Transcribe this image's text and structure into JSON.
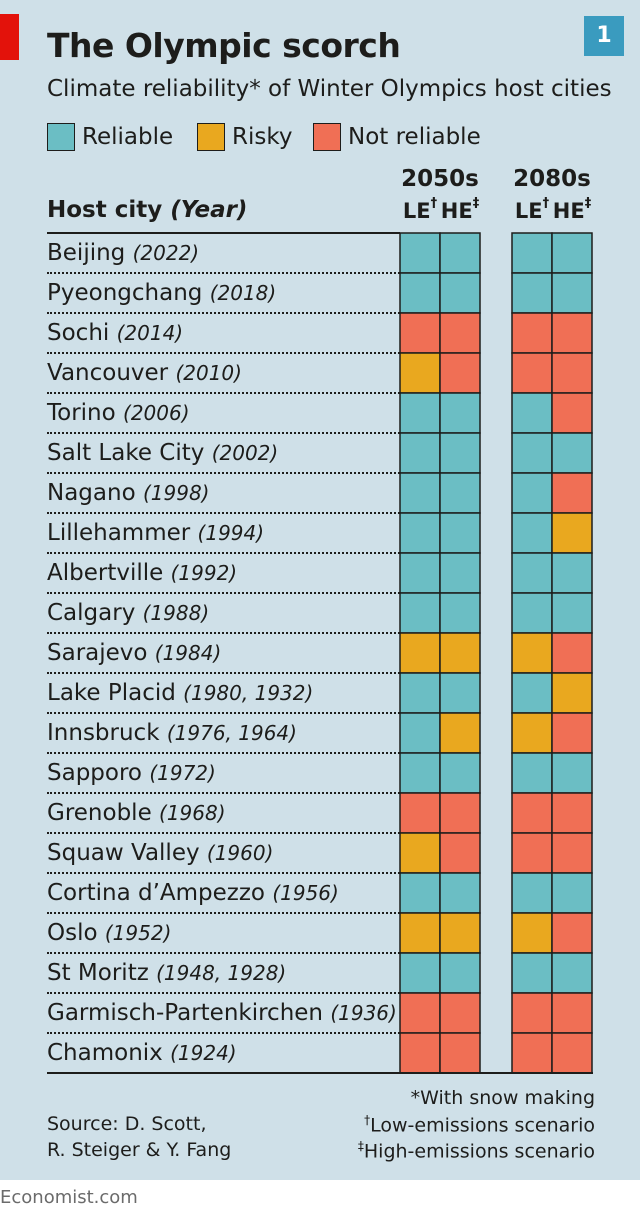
{
  "title": "The Olympic scorch",
  "chart_number": "1",
  "subtitle": "Climate reliability* of Winter Olympics host cities",
  "legend": [
    {
      "label": "Reliable",
      "color": "#6bbec4"
    },
    {
      "label": "Risky",
      "color": "#e9a81f"
    },
    {
      "label": "Not reliable",
      "color": "#f06f55"
    }
  ],
  "column_header": {
    "host": "Host city",
    "year": "(Year)"
  },
  "periods": [
    {
      "label": "2050s",
      "scenarios": [
        {
          "code": "LE",
          "mark": "†"
        },
        {
          "code": "HE",
          "mark": "‡"
        }
      ]
    },
    {
      "label": "2080s",
      "scenarios": [
        {
          "code": "LE",
          "mark": "†"
        },
        {
          "code": "HE",
          "mark": "‡"
        }
      ]
    }
  ],
  "chart_data": {
    "type": "table",
    "title": "The Olympic scorch",
    "columns": [
      "2050s LE",
      "2050s HE",
      "2080s LE",
      "2080s HE"
    ],
    "rows": [
      {
        "city": "Beijing",
        "years": "(2022)",
        "ratings": [
          "Reliable",
          "Reliable",
          "Reliable",
          "Reliable"
        ]
      },
      {
        "city": "Pyeongchang",
        "years": "(2018)",
        "ratings": [
          "Reliable",
          "Reliable",
          "Reliable",
          "Reliable"
        ]
      },
      {
        "city": "Sochi",
        "years": "(2014)",
        "ratings": [
          "Not reliable",
          "Not reliable",
          "Not reliable",
          "Not reliable"
        ]
      },
      {
        "city": "Vancouver",
        "years": "(2010)",
        "ratings": [
          "Risky",
          "Not reliable",
          "Not reliable",
          "Not reliable"
        ]
      },
      {
        "city": "Torino",
        "years": "(2006)",
        "ratings": [
          "Reliable",
          "Reliable",
          "Reliable",
          "Not reliable"
        ]
      },
      {
        "city": "Salt Lake City",
        "years": "(2002)",
        "ratings": [
          "Reliable",
          "Reliable",
          "Reliable",
          "Reliable"
        ]
      },
      {
        "city": "Nagano",
        "years": "(1998)",
        "ratings": [
          "Reliable",
          "Reliable",
          "Reliable",
          "Not reliable"
        ]
      },
      {
        "city": "Lillehammer",
        "years": "(1994)",
        "ratings": [
          "Reliable",
          "Reliable",
          "Reliable",
          "Risky"
        ]
      },
      {
        "city": "Albertville",
        "years": "(1992)",
        "ratings": [
          "Reliable",
          "Reliable",
          "Reliable",
          "Reliable"
        ]
      },
      {
        "city": "Calgary",
        "years": "(1988)",
        "ratings": [
          "Reliable",
          "Reliable",
          "Reliable",
          "Reliable"
        ]
      },
      {
        "city": "Sarajevo",
        "years": "(1984)",
        "ratings": [
          "Risky",
          "Risky",
          "Risky",
          "Not reliable"
        ]
      },
      {
        "city": "Lake Placid",
        "years": "(1980, 1932)",
        "ratings": [
          "Reliable",
          "Reliable",
          "Reliable",
          "Risky"
        ]
      },
      {
        "city": "Innsbruck",
        "years": "(1976, 1964)",
        "ratings": [
          "Reliable",
          "Risky",
          "Risky",
          "Not reliable"
        ]
      },
      {
        "city": "Sapporo",
        "years": "(1972)",
        "ratings": [
          "Reliable",
          "Reliable",
          "Reliable",
          "Reliable"
        ]
      },
      {
        "city": "Grenoble",
        "years": "(1968)",
        "ratings": [
          "Not reliable",
          "Not reliable",
          "Not reliable",
          "Not reliable"
        ]
      },
      {
        "city": "Squaw Valley",
        "years": "(1960)",
        "ratings": [
          "Risky",
          "Not reliable",
          "Not reliable",
          "Not reliable"
        ]
      },
      {
        "city": "Cortina d’Ampezzo",
        "years": "(1956)",
        "ratings": [
          "Reliable",
          "Reliable",
          "Reliable",
          "Reliable"
        ]
      },
      {
        "city": "Oslo",
        "years": "(1952)",
        "ratings": [
          "Risky",
          "Risky",
          "Risky",
          "Not reliable"
        ]
      },
      {
        "city": "St Moritz",
        "years": "(1948, 1928)",
        "ratings": [
          "Reliable",
          "Reliable",
          "Reliable",
          "Reliable"
        ]
      },
      {
        "city": "Garmisch-Partenkirchen",
        "years": "(1936)",
        "ratings": [
          "Not reliable",
          "Not reliable",
          "Not reliable",
          "Not reliable"
        ]
      },
      {
        "city": "Chamonix",
        "years": "(1924)",
        "ratings": [
          "Not reliable",
          "Not reliable",
          "Not reliable",
          "Not reliable"
        ]
      }
    ]
  },
  "footnotes": {
    "snow": "*With snow making",
    "low_mark": "†",
    "low": "Low-emissions scenario",
    "high_mark": "‡",
    "high": "High-emissions scenario"
  },
  "source": {
    "line1": "Source: D. Scott,",
    "line2": "R. Steiger & Y. Fang"
  },
  "credit": "Economist.com"
}
